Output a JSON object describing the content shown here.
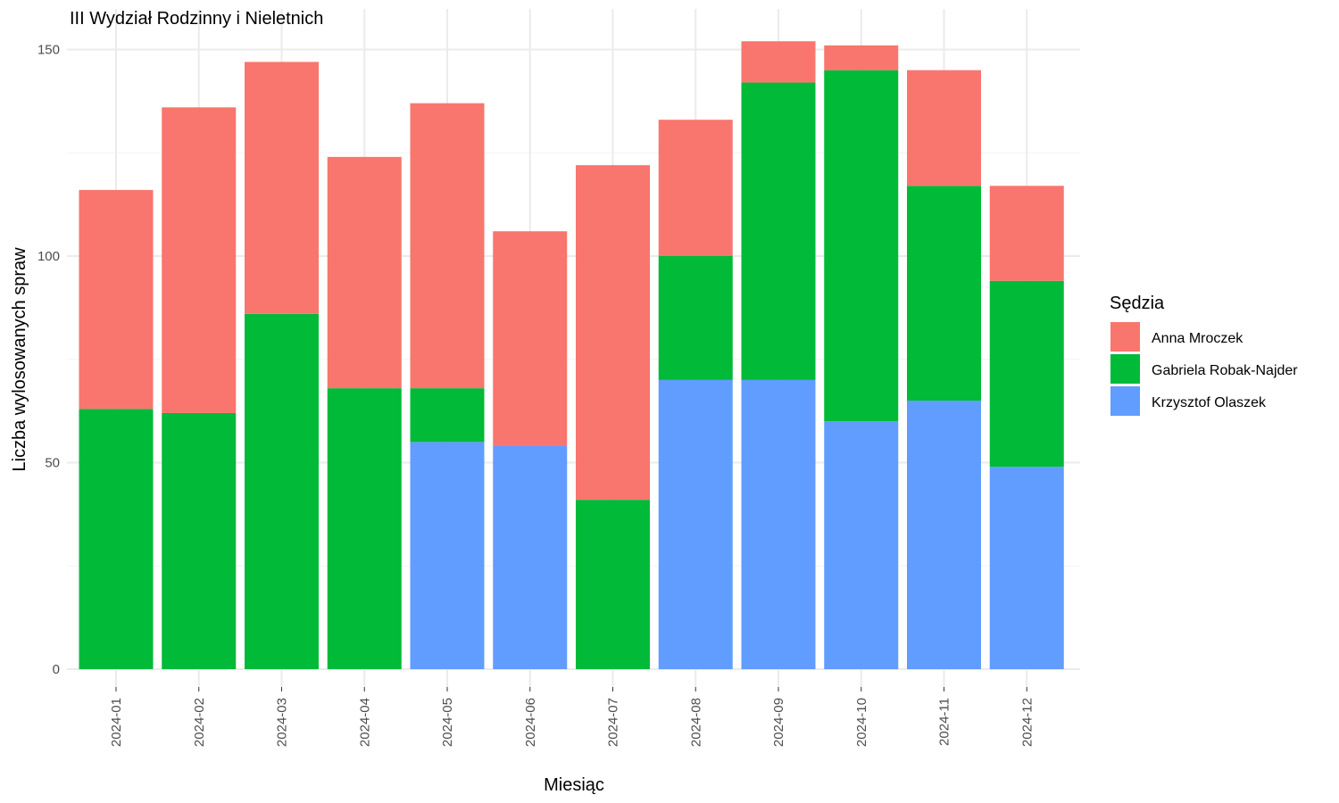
{
  "chart_data": {
    "type": "bar",
    "stacked": true,
    "title": "III Wydział Rodzinny i Nieletnich",
    "xlabel": "Miesiąc",
    "ylabel": "Liczba wylosowanych spraw",
    "ylim": [
      0,
      160
    ],
    "yticks": [
      0,
      50,
      100,
      150
    ],
    "grid": true,
    "legend": {
      "title": "Sędzia",
      "position": "right"
    },
    "categories": [
      "2024-01",
      "2024-02",
      "2024-03",
      "2024-04",
      "2024-05",
      "2024-06",
      "2024-07",
      "2024-08",
      "2024-09",
      "2024-10",
      "2024-11",
      "2024-12"
    ],
    "series": [
      {
        "name": "Krzysztof Olaszek",
        "color": "#619CFF",
        "values": [
          0,
          0,
          0,
          0,
          55,
          54,
          0,
          70,
          70,
          60,
          65,
          49
        ]
      },
      {
        "name": "Gabriela Robak-Najder",
        "color": "#00BA38",
        "values": [
          63,
          62,
          86,
          68,
          13,
          0,
          41,
          30,
          72,
          85,
          52,
          45
        ]
      },
      {
        "name": "Anna Mroczek",
        "color": "#F8766D",
        "values": [
          53,
          74,
          61,
          56,
          69,
          52,
          81,
          33,
          10,
          6,
          28,
          23
        ]
      }
    ],
    "legend_order": [
      "Anna Mroczek",
      "Gabriela Robak-Najder",
      "Krzysztof Olaszek"
    ]
  }
}
